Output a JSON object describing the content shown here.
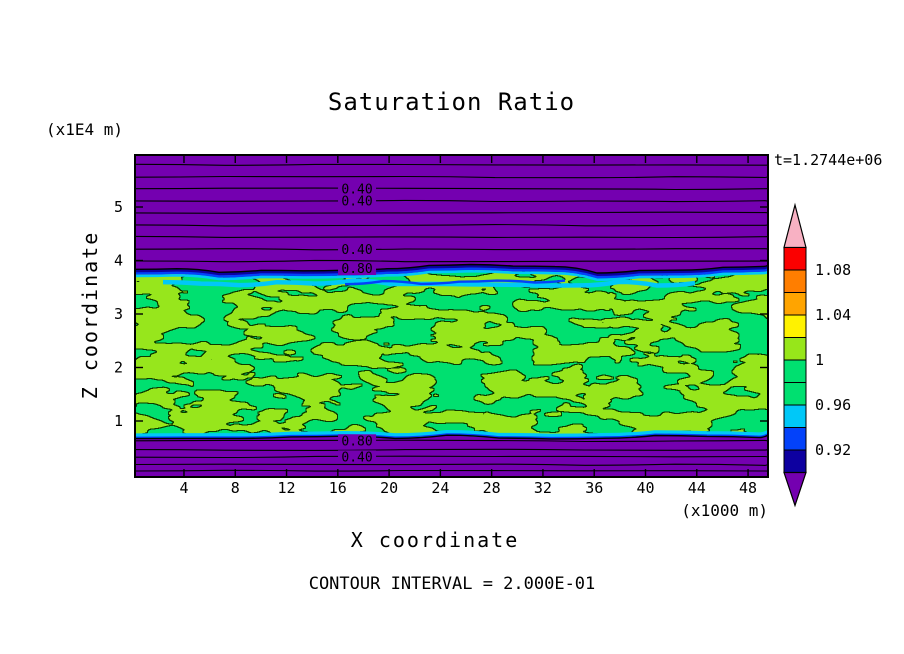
{
  "title": "Saturation Ratio",
  "annotations": {
    "timestamp": "t=1.2744e+06",
    "contour_interval_text": "CONTOUR INTERVAL = 2.000E-01"
  },
  "axes": {
    "x_label": "X coordinate",
    "x_units": "(x1000 m)",
    "y_label": "Z coordinate",
    "y_units": "(x1E4 m)"
  },
  "colorbar": {
    "over_arrow_color": "#f8b1c3",
    "under_arrow_color": "#7400b0",
    "segments": [
      {
        "range": "1.08-1.10",
        "color": "#fb0000"
      },
      {
        "range": "1.06-1.08",
        "color": "#ff7e00"
      },
      {
        "range": "1.04-1.06",
        "color": "#ffa400"
      },
      {
        "range": "1.02-1.04",
        "color": "#fff200"
      },
      {
        "range": "1.00-1.02",
        "color": "#97e61a"
      },
      {
        "range": "0.98-1.00",
        "color": "#00e070"
      },
      {
        "range": "0.96-0.98",
        "color": "#00e070"
      },
      {
        "range": "0.94-0.96",
        "color": "#00c8f8"
      },
      {
        "range": "0.92-0.94",
        "color": "#0342fa"
      },
      {
        "range": "0.90-0.92",
        "color": "#0d00a0"
      }
    ],
    "tick_labels": [
      {
        "text": "1.08",
        "boundary_index": 1
      },
      {
        "text": "1.04",
        "boundary_index": 3
      },
      {
        "text": "1",
        "boundary_index": 5
      },
      {
        "text": "0.96",
        "boundary_index": 7
      },
      {
        "text": "0.92",
        "boundary_index": 9
      }
    ]
  },
  "chart_data": {
    "type": "heatmap",
    "subtype": "filled_contour",
    "title": "Saturation Ratio",
    "xlabel": "X coordinate (x1000 m)",
    "ylabel": "Z coordinate (x1E4 m)",
    "xlim": [
      0,
      49.5
    ],
    "ylim": [
      0,
      6
    ],
    "x_ticks": [
      4,
      8,
      12,
      16,
      20,
      24,
      28,
      32,
      36,
      40,
      44,
      48
    ],
    "y_ticks": [
      1,
      2,
      3,
      4,
      5
    ],
    "grid": false,
    "legend_position": "right-colorbar",
    "time_annotation": "t=1.2744e+06",
    "contour_interval": 0.2,
    "colorbar_tick_values": [
      1.08,
      1.04,
      1.0,
      0.96,
      0.92
    ],
    "field_regions": [
      {
        "name": "upper subsaturated layer",
        "z_range": [
          3.85,
          6.0
        ],
        "saturation_ratio": "< 0.90",
        "color": "#7400b0"
      },
      {
        "name": "entrainment streak",
        "z_range": [
          3.5,
          3.7
        ],
        "saturation_ratio": "0.92-0.96",
        "colors": [
          "#00c8f8",
          "#0342fa"
        ]
      },
      {
        "name": "saturated cloud band",
        "z_range": [
          0.7,
          3.85
        ],
        "saturation_ratio": "0.96-1.02 mottled",
        "colors": [
          "#00e070",
          "#97e61a"
        ]
      },
      {
        "name": "lower subsaturated layer",
        "z_range": [
          0.0,
          0.7
        ],
        "saturation_ratio": "< 0.90",
        "color": "#7400b0"
      }
    ],
    "background_contour_lines_z": {
      "upper": [
        5.79,
        5.56,
        5.34,
        5.11,
        4.89,
        4.66,
        4.44,
        4.21,
        3.99
      ],
      "lower": [
        0.63,
        0.46,
        0.33,
        0.18,
        0.07
      ]
    },
    "contour_line_labels": [
      {
        "text": "0.40",
        "x": 17.5,
        "z": 5.34
      },
      {
        "text": "0.40",
        "x": 17.5,
        "z": 5.11
      },
      {
        "text": "0.40",
        "x": 17.5,
        "z": 4.21
      },
      {
        "text": "0.80",
        "x": 17.5,
        "z": 3.85
      },
      {
        "text": "0.80",
        "x": 17.5,
        "z": 0.63
      },
      {
        "text": "0.40",
        "x": 17.5,
        "z": 0.33
      }
    ]
  }
}
